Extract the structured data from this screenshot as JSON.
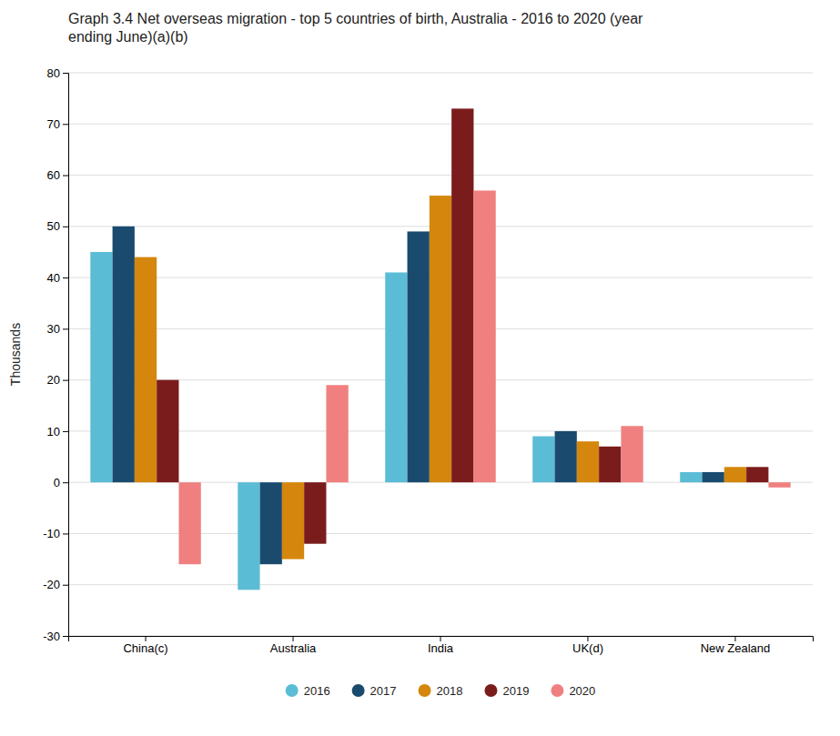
{
  "chart_data": {
    "type": "bar",
    "title": "Graph 3.4 Net overseas migration - top 5 countries of birth, Australia - 2016 to 2020 (year\nending June)(a)(b)",
    "y_label": "Thousands",
    "categories": [
      "China(c)",
      "Australia",
      "India",
      "UK(d)",
      "New Zealand"
    ],
    "series": [
      {
        "name": "2016",
        "color": "#5bbcd6",
        "values": [
          45,
          -21,
          41,
          9,
          2
        ]
      },
      {
        "name": "2017",
        "color": "#1a4b6e",
        "values": [
          50,
          -16,
          49,
          10,
          2
        ]
      },
      {
        "name": "2018",
        "color": "#d4870c",
        "values": [
          44,
          -15,
          56,
          8,
          3
        ]
      },
      {
        "name": "2019",
        "color": "#7b1c1c",
        "values": [
          20,
          -12,
          73,
          7,
          3
        ]
      },
      {
        "name": "2020",
        "color": "#f08080",
        "values": [
          -16,
          19,
          57,
          11,
          -1
        ]
      }
    ],
    "ylim": [
      -30,
      80
    ],
    "yticks": [
      -30,
      -20,
      -10,
      0,
      10,
      20,
      30,
      40,
      50,
      60,
      70,
      80
    ],
    "grid": true,
    "legend": "bottom"
  }
}
